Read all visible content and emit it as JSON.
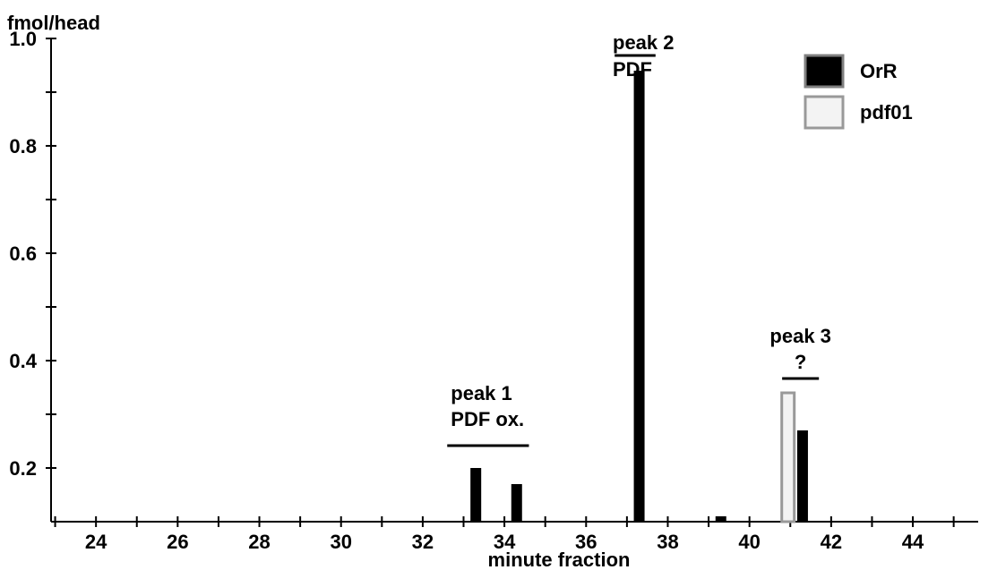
{
  "chart_data": {
    "type": "bar",
    "ylabel": "fmol/head",
    "xlabel": "minute fraction",
    "x_ticks": [
      24,
      26,
      28,
      30,
      32,
      34,
      36,
      38,
      40,
      42,
      44
    ],
    "xlim": [
      22.9,
      45.6
    ],
    "y_ticks": [
      0.2,
      0.4,
      0.6,
      0.8,
      1.0
    ],
    "y_tick_labels": [
      "0.2",
      "0.4",
      "0.6",
      "0.8",
      "1.0"
    ],
    "ylim": [
      0.1,
      1.0
    ],
    "series": [
      {
        "name": "OrR",
        "color": "#000000",
        "points": [
          {
            "x": 33.3,
            "y": 0.2
          },
          {
            "x": 34.3,
            "y": 0.17
          },
          {
            "x": 37.3,
            "y": 0.94
          },
          {
            "x": 39.3,
            "y": 0.11
          },
          {
            "x": 41.3,
            "y": 0.27
          }
        ]
      },
      {
        "name": "pdf01",
        "color": "#f3f3f3",
        "stroke": "#999999",
        "points": [
          {
            "x": 40.9,
            "y": 0.34
          }
        ]
      }
    ],
    "annotations": [
      {
        "lines": [
          "peak 1",
          "PDF ox."
        ],
        "x_range": [
          32.6,
          34.6
        ]
      },
      {
        "lines": [
          "peak 2",
          "PDF"
        ],
        "x_range": [
          36.7,
          37.7
        ]
      },
      {
        "lines": [
          "peak 3",
          "?"
        ],
        "x_range": [
          40.8,
          41.7
        ]
      }
    ],
    "legend_position": "top-right"
  }
}
